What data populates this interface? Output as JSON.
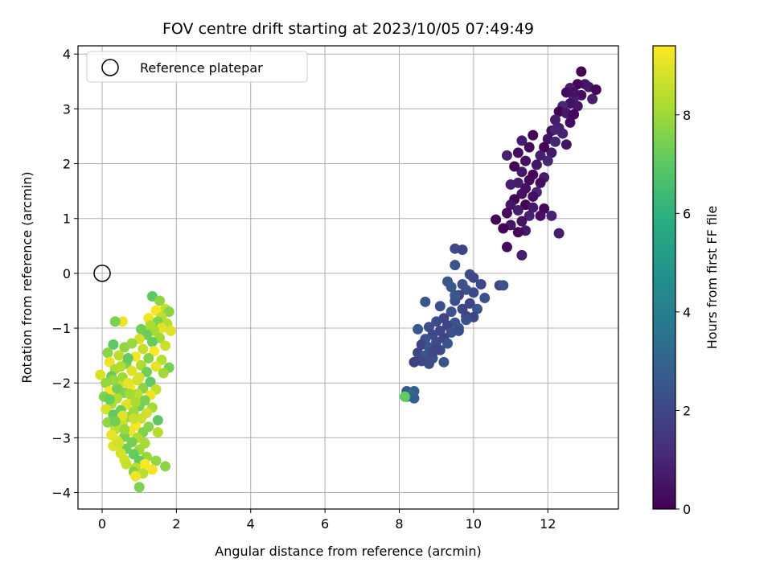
{
  "chart_data": {
    "type": "scatter",
    "title": "FOV centre drift starting at 2023/10/05 07:49:49",
    "xlabel": "Angular distance from reference (arcmin)",
    "ylabel": "Rotation from reference (arcmin)",
    "xlim": [
      -0.65,
      13.9
    ],
    "ylim": [
      -4.3,
      4.15
    ],
    "xticks": [
      0,
      2,
      4,
      6,
      8,
      10,
      12
    ],
    "yticks": [
      -4,
      -3,
      -2,
      -1,
      0,
      1,
      2,
      3,
      4
    ],
    "grid": true,
    "legend_position": "top-left",
    "reference": {
      "label": "Reference platepar",
      "x": 0,
      "y": 0,
      "marker": "open-circle"
    },
    "colorbar": {
      "label": "Hours from first FF file",
      "colormap": "viridis",
      "range": [
        0,
        9.4
      ],
      "ticks": [
        0,
        2,
        4,
        6,
        8
      ]
    },
    "clusters": [
      {
        "hours_range": [
          0,
          1.0
        ],
        "points": [
          [
            12.9,
            3.68
          ],
          [
            13.0,
            3.45
          ],
          [
            12.8,
            3.45
          ],
          [
            13.1,
            3.4
          ],
          [
            13.3,
            3.35
          ],
          [
            12.6,
            3.38
          ],
          [
            12.5,
            3.3
          ],
          [
            13.2,
            3.18
          ],
          [
            12.9,
            3.25
          ],
          [
            12.7,
            3.2
          ],
          [
            12.6,
            3.1
          ],
          [
            12.4,
            3.05
          ],
          [
            12.8,
            3.05
          ],
          [
            12.3,
            2.95
          ],
          [
            12.5,
            2.92
          ],
          [
            12.7,
            2.9
          ],
          [
            12.2,
            2.8
          ],
          [
            12.6,
            2.75
          ],
          [
            12.3,
            2.65
          ],
          [
            12.1,
            2.6
          ],
          [
            12.4,
            2.55
          ],
          [
            12.0,
            2.45
          ],
          [
            12.2,
            2.4
          ],
          [
            12.5,
            2.35
          ],
          [
            11.9,
            2.3
          ],
          [
            12.1,
            2.2
          ],
          [
            11.6,
            2.52
          ],
          [
            11.3,
            2.42
          ],
          [
            11.5,
            2.3
          ],
          [
            11.8,
            2.15
          ],
          [
            11.2,
            2.2
          ],
          [
            10.9,
            2.15
          ],
          [
            11.4,
            2.05
          ],
          [
            12.0,
            2.05
          ],
          [
            11.7,
            1.98
          ],
          [
            11.1,
            1.95
          ],
          [
            11.3,
            1.85
          ],
          [
            11.6,
            1.8
          ],
          [
            11.9,
            1.75
          ],
          [
            11.5,
            1.7
          ],
          [
            11.2,
            1.65
          ],
          [
            11.8,
            1.65
          ],
          [
            11.0,
            1.62
          ],
          [
            11.4,
            1.55
          ],
          [
            11.7,
            1.48
          ],
          [
            11.3,
            1.45
          ],
          [
            11.1,
            1.35
          ],
          [
            11.0,
            1.25
          ],
          [
            11.4,
            1.25
          ],
          [
            11.6,
            1.2
          ],
          [
            11.9,
            1.18
          ],
          [
            11.2,
            1.15
          ],
          [
            10.9,
            1.1
          ],
          [
            11.5,
            1.05
          ],
          [
            11.8,
            1.05
          ],
          [
            12.1,
            1.05
          ],
          [
            11.3,
            0.95
          ],
          [
            10.6,
            0.98
          ],
          [
            11.0,
            0.88
          ],
          [
            10.8,
            0.82
          ],
          [
            11.4,
            0.78
          ],
          [
            11.2,
            0.75
          ],
          [
            12.3,
            0.73
          ],
          [
            10.9,
            0.48
          ],
          [
            11.3,
            0.33
          ],
          [
            11.6,
            1.4
          ],
          [
            12.2,
            2.62
          ],
          [
            12.7,
            3.3
          ]
        ]
      },
      {
        "hours_range": [
          1.8,
          2.6
        ],
        "points": [
          [
            10.7,
            -0.22
          ],
          [
            10.8,
            -0.22
          ],
          [
            9.5,
            0.45
          ],
          [
            9.7,
            0.43
          ],
          [
            9.5,
            0.15
          ],
          [
            9.9,
            -0.02
          ],
          [
            10.0,
            -0.08
          ],
          [
            9.3,
            -0.15
          ],
          [
            9.7,
            -0.2
          ],
          [
            10.2,
            -0.2
          ],
          [
            9.4,
            -0.25
          ],
          [
            9.8,
            -0.3
          ],
          [
            10.0,
            -0.35
          ],
          [
            9.6,
            -0.4
          ],
          [
            10.3,
            -0.45
          ],
          [
            9.5,
            -0.5
          ],
          [
            9.9,
            -0.55
          ],
          [
            8.7,
            -0.52
          ],
          [
            9.1,
            -0.6
          ],
          [
            9.7,
            -0.65
          ],
          [
            10.1,
            -0.65
          ],
          [
            9.4,
            -0.7
          ],
          [
            9.8,
            -0.78
          ],
          [
            9.2,
            -0.82
          ],
          [
            9.5,
            -0.9
          ],
          [
            9.0,
            -0.88
          ],
          [
            9.3,
            -0.95
          ],
          [
            9.6,
            -1.0
          ],
          [
            8.8,
            -0.98
          ],
          [
            9.1,
            -1.05
          ],
          [
            8.5,
            -1.02
          ],
          [
            9.4,
            -1.08
          ],
          [
            8.9,
            -1.12
          ],
          [
            9.2,
            -1.18
          ],
          [
            8.7,
            -1.2
          ],
          [
            9.0,
            -1.25
          ],
          [
            8.6,
            -1.3
          ],
          [
            8.8,
            -1.35
          ],
          [
            9.1,
            -1.4
          ],
          [
            8.5,
            -1.45
          ],
          [
            8.7,
            -1.5
          ],
          [
            8.9,
            -1.55
          ],
          [
            8.6,
            -1.6
          ],
          [
            8.4,
            -1.62
          ],
          [
            9.2,
            -1.62
          ],
          [
            8.8,
            -1.65
          ],
          [
            9.0,
            -1.38
          ],
          [
            9.3,
            -1.28
          ],
          [
            9.6,
            -1.05
          ],
          [
            10.0,
            -0.8
          ],
          [
            9.5,
            -0.4
          ],
          [
            9.8,
            -0.85
          ],
          [
            8.9,
            -1.45
          ]
        ]
      },
      {
        "hours_range": [
          2.6,
          3.3
        ],
        "points": [
          [
            8.2,
            -2.15
          ],
          [
            8.4,
            -2.15
          ],
          [
            8.3,
            -2.22
          ],
          [
            8.4,
            -2.28
          ],
          [
            8.2,
            -2.25
          ]
        ]
      },
      {
        "hours_range": [
          6.9,
          7.3
        ],
        "points": [
          [
            8.15,
            -2.25
          ]
        ]
      },
      {
        "hours_range": [
          7.0,
          9.4
        ],
        "points": [
          [
            1.35,
            -0.42
          ],
          [
            1.55,
            -0.5
          ],
          [
            1.7,
            -0.65
          ],
          [
            1.45,
            -0.68
          ],
          [
            1.8,
            -0.7
          ],
          [
            1.6,
            -0.8
          ],
          [
            1.25,
            -0.82
          ],
          [
            1.5,
            -0.88
          ],
          [
            1.75,
            -0.92
          ],
          [
            0.55,
            -0.88
          ],
          [
            0.35,
            -0.88
          ],
          [
            1.3,
            -0.95
          ],
          [
            1.6,
            -1.0
          ],
          [
            1.05,
            -1.02
          ],
          [
            1.4,
            -1.05
          ],
          [
            1.85,
            -1.05
          ],
          [
            1.2,
            -1.12
          ],
          [
            1.55,
            -1.18
          ],
          [
            1.0,
            -1.2
          ],
          [
            1.35,
            -1.25
          ],
          [
            0.8,
            -1.28
          ],
          [
            1.7,
            -1.32
          ],
          [
            0.3,
            -1.3
          ],
          [
            0.6,
            -1.35
          ],
          [
            1.1,
            -1.38
          ],
          [
            1.4,
            -1.42
          ],
          [
            0.15,
            -1.45
          ],
          [
            0.45,
            -1.5
          ],
          [
            0.9,
            -1.52
          ],
          [
            1.25,
            -1.55
          ],
          [
            1.6,
            -1.58
          ],
          [
            0.2,
            -1.62
          ],
          [
            0.65,
            -1.65
          ],
          [
            1.05,
            -1.68
          ],
          [
            1.45,
            -1.7
          ],
          [
            1.8,
            -1.72
          ],
          [
            0.35,
            -1.75
          ],
          [
            0.8,
            -1.78
          ],
          [
            1.2,
            -1.8
          ],
          [
            1.65,
            -1.82
          ],
          [
            -0.05,
            -1.85
          ],
          [
            0.25,
            -1.88
          ],
          [
            0.55,
            -1.9
          ],
          [
            0.95,
            -1.95
          ],
          [
            1.3,
            -1.98
          ],
          [
            0.1,
            -2.0
          ],
          [
            0.45,
            -2.05
          ],
          [
            0.75,
            -2.08
          ],
          [
            1.1,
            -2.1
          ],
          [
            1.45,
            -2.12
          ],
          [
            0.2,
            -2.15
          ],
          [
            0.6,
            -2.18
          ],
          [
            0.95,
            -2.2
          ],
          [
            1.3,
            -2.22
          ],
          [
            0.05,
            -2.25
          ],
          [
            0.4,
            -2.28
          ],
          [
            0.8,
            -2.3
          ],
          [
            1.15,
            -2.32
          ],
          [
            0.25,
            -2.38
          ],
          [
            0.65,
            -2.4
          ],
          [
            1.0,
            -2.42
          ],
          [
            1.35,
            -2.45
          ],
          [
            0.1,
            -2.48
          ],
          [
            0.5,
            -2.5
          ],
          [
            0.85,
            -2.52
          ],
          [
            1.2,
            -2.55
          ],
          [
            0.3,
            -2.58
          ],
          [
            0.7,
            -2.62
          ],
          [
            1.05,
            -2.65
          ],
          [
            1.5,
            -2.68
          ],
          [
            0.15,
            -2.72
          ],
          [
            0.55,
            -2.75
          ],
          [
            0.9,
            -2.78
          ],
          [
            1.25,
            -2.8
          ],
          [
            0.35,
            -2.85
          ],
          [
            0.75,
            -2.88
          ],
          [
            1.1,
            -2.9
          ],
          [
            1.5,
            -2.9
          ],
          [
            0.25,
            -2.95
          ],
          [
            0.6,
            -2.98
          ],
          [
            0.95,
            -3.0
          ],
          [
            0.4,
            -3.05
          ],
          [
            0.8,
            -3.08
          ],
          [
            1.15,
            -3.1
          ],
          [
            0.3,
            -3.15
          ],
          [
            0.65,
            -3.2
          ],
          [
            1.0,
            -3.22
          ],
          [
            0.5,
            -3.28
          ],
          [
            0.85,
            -3.3
          ],
          [
            1.2,
            -3.35
          ],
          [
            0.6,
            -3.4
          ],
          [
            1.0,
            -3.42
          ],
          [
            1.45,
            -3.42
          ],
          [
            0.65,
            -3.48
          ],
          [
            1.15,
            -3.48
          ],
          [
            1.7,
            -3.52
          ],
          [
            0.9,
            -3.55
          ],
          [
            1.35,
            -3.58
          ],
          [
            0.85,
            -3.62
          ],
          [
            1.1,
            -3.65
          ],
          [
            0.9,
            -3.7
          ],
          [
            1.0,
            -3.9
          ],
          [
            0.5,
            -1.7
          ],
          [
            0.7,
            -2.0
          ],
          [
            0.4,
            -2.1
          ],
          [
            0.9,
            -2.35
          ],
          [
            0.55,
            -2.6
          ],
          [
            0.35,
            -2.7
          ],
          [
            0.75,
            -2.2
          ],
          [
            1.0,
            -1.9
          ],
          [
            0.2,
            -2.3
          ],
          [
            0.6,
            -2.85
          ],
          [
            0.45,
            -3.1
          ],
          [
            0.7,
            -1.55
          ],
          [
            0.3,
            -1.95
          ],
          [
            0.85,
            -2.65
          ]
        ]
      }
    ]
  }
}
